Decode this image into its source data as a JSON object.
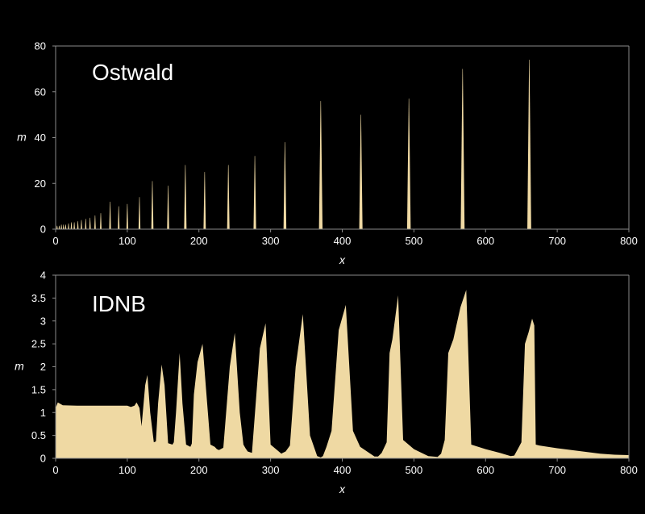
{
  "colors": {
    "background": "#000000",
    "fill": "#efd9a3",
    "axis": "#8a8a8a",
    "text": "#ffffff"
  },
  "chart_data": [
    {
      "type": "area",
      "title": "Ostwald",
      "xlabel": "x",
      "ylabel": "m",
      "xlim": [
        0,
        800
      ],
      "ylim": [
        0,
        80
      ],
      "xticks": [
        "0",
        "100",
        "200",
        "300",
        "400",
        "500",
        "600",
        "700",
        "800"
      ],
      "yticks": [
        "0",
        "20",
        "40",
        "60",
        "80"
      ],
      "grid": false,
      "legend": "none",
      "spikes": {
        "x": [
          2,
          5,
          8,
          11,
          14,
          18,
          22,
          26,
          31,
          36,
          42,
          48,
          55,
          63,
          76,
          88,
          100,
          117,
          135,
          157,
          181,
          208,
          241,
          278,
          320,
          370,
          426,
          493,
          568,
          661
        ],
        "y": [
          1.5,
          1.5,
          2,
          2,
          2,
          2.5,
          3,
          3,
          3.5,
          4,
          4.5,
          5,
          6,
          7,
          12,
          10,
          11,
          14,
          21,
          19,
          28,
          25,
          28,
          32,
          38,
          56,
          50,
          57,
          70,
          74
        ]
      }
    },
    {
      "type": "area",
      "title": "IDNB",
      "xlabel": "x",
      "ylabel": "m",
      "xlim": [
        0,
        800
      ],
      "ylim": [
        0,
        4
      ],
      "xticks": [
        "0",
        "100",
        "200",
        "300",
        "400",
        "500",
        "600",
        "700",
        "800"
      ],
      "yticks": [
        "0",
        "0.5",
        "1",
        "1.5",
        "2",
        "2.5",
        "3",
        "3.5",
        "4"
      ],
      "grid": false,
      "legend": "none",
      "series": [
        {
          "x": [
            0,
            3,
            10,
            30,
            60,
            90,
            100,
            105,
            110,
            113,
            117,
            120,
            125,
            128,
            132,
            137,
            140,
            143,
            148,
            152,
            157,
            163,
            165,
            168,
            173,
            177,
            182,
            188,
            190,
            193,
            198,
            205,
            210,
            216,
            222,
            225,
            228,
            234,
            243,
            250,
            257,
            262,
            265,
            268,
            274,
            285,
            293,
            300,
            315,
            317,
            321,
            327,
            335,
            345,
            355,
            365,
            370,
            373,
            378,
            385,
            395,
            405,
            415,
            425,
            445,
            450,
            455,
            462,
            466,
            470,
            478,
            485,
            500,
            520,
            533,
            538,
            543,
            548,
            555,
            565,
            573,
            580,
            600,
            620,
            635,
            640,
            645,
            650,
            655,
            660,
            665,
            668,
            670,
            675,
            700,
            730,
            760,
            780,
            800
          ],
          "y": [
            1.1,
            1.22,
            1.16,
            1.15,
            1.15,
            1.15,
            1.15,
            1.12,
            1.15,
            1.22,
            1.1,
            0.7,
            1.6,
            1.82,
            1.0,
            0.35,
            0.37,
            1.2,
            2.05,
            1.6,
            0.33,
            0.3,
            0.35,
            1.0,
            2.3,
            1.2,
            0.3,
            0.25,
            0.32,
            1.4,
            2.1,
            2.5,
            1.5,
            0.3,
            0.25,
            0.2,
            0.18,
            0.23,
            2.0,
            2.74,
            1.0,
            0.3,
            0.22,
            0.15,
            0.12,
            2.4,
            2.95,
            0.3,
            0.1,
            0.12,
            0.15,
            0.28,
            2.0,
            3.15,
            0.5,
            0.05,
            0.02,
            0.05,
            0.25,
            0.6,
            2.8,
            3.35,
            0.6,
            0.25,
            0.04,
            0.04,
            0.12,
            0.35,
            2.3,
            2.6,
            3.56,
            0.4,
            0.2,
            0.05,
            0.03,
            0.1,
            0.4,
            2.3,
            2.6,
            3.3,
            3.68,
            0.3,
            0.2,
            0.12,
            0.05,
            0.06,
            0.2,
            0.35,
            2.5,
            2.75,
            3.05,
            2.9,
            0.3,
            0.28,
            0.22,
            0.16,
            0.1,
            0.08,
            0.07
          ]
        }
      ]
    }
  ]
}
